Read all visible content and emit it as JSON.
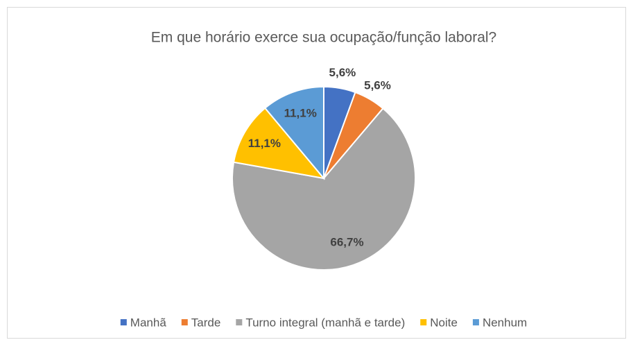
{
  "chart_data": {
    "type": "pie",
    "title": "Em que horário exerce sua ocupação/função laboral?",
    "categories": [
      "Manhã",
      "Tarde",
      "Turno integral (manhã e tarde)",
      "Noite",
      "Nenhum"
    ],
    "values": [
      5.6,
      5.6,
      66.7,
      11.1,
      11.1
    ],
    "value_labels": [
      "5,6%",
      "5,6%",
      "66,7%",
      "11,1%",
      "11,1%"
    ],
    "colors": [
      "#4472c4",
      "#ed7d31",
      "#a5a5a5",
      "#ffc000",
      "#5b9bd5"
    ],
    "legend": "bottom"
  }
}
